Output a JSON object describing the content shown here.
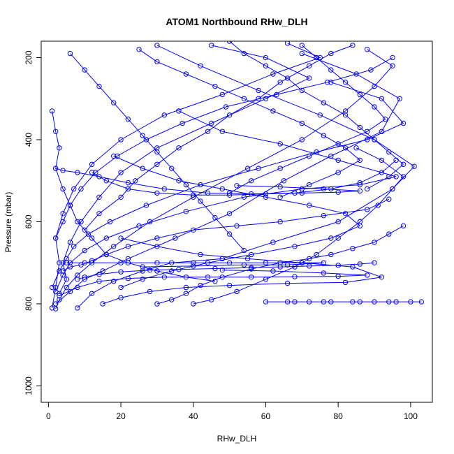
{
  "chart_data": {
    "type": "scatter",
    "title": "ATOM1 Northbound RHw_DLH",
    "xlabel": "RHw_DLH",
    "ylabel": "Pressure (mbar)",
    "xlim": [
      -2,
      106
    ],
    "ylim": [
      1040,
      160
    ],
    "y_inverted": true,
    "x_ticks": [
      0,
      20,
      40,
      60,
      80,
      100
    ],
    "y_ticks": [
      200,
      400,
      600,
      800,
      1000
    ],
    "grid": false,
    "series_color": "#0000ff",
    "marker": "open-circle",
    "profiles": [
      [
        [
          2,
          812
        ],
        [
          3,
          790
        ],
        [
          5,
          760
        ],
        [
          8,
          730
        ],
        [
          12,
          700
        ],
        [
          18,
          660
        ],
        [
          28,
          600
        ],
        [
          40,
          540
        ],
        [
          55,
          470
        ],
        [
          70,
          400
        ],
        [
          82,
          330
        ],
        [
          90,
          270
        ],
        [
          95,
          220
        ],
        [
          88,
          180
        ]
      ],
      [
        [
          2,
          800
        ],
        [
          6,
          770
        ],
        [
          10,
          740
        ],
        [
          15,
          720
        ],
        [
          22,
          690
        ],
        [
          35,
          640
        ],
        [
          50,
          580
        ],
        [
          65,
          500
        ],
        [
          78,
          440
        ],
        [
          92,
          380
        ],
        [
          97,
          300
        ],
        [
          85,
          240
        ],
        [
          70,
          190
        ]
      ],
      [
        [
          3,
          775
        ],
        [
          5,
          740
        ],
        [
          4,
          700
        ],
        [
          6,
          650
        ],
        [
          9,
          600
        ],
        [
          14,
          540
        ],
        [
          20,
          480
        ],
        [
          30,
          420
        ],
        [
          45,
          360
        ],
        [
          60,
          300
        ],
        [
          72,
          250
        ],
        [
          60,
          200
        ],
        [
          45,
          170
        ]
      ],
      [
        [
          1,
          810
        ],
        [
          2,
          760
        ],
        [
          3,
          700
        ],
        [
          2,
          640
        ],
        [
          4,
          580
        ],
        [
          7,
          520
        ],
        [
          12,
          460
        ],
        [
          20,
          400
        ],
        [
          32,
          340
        ],
        [
          48,
          290
        ],
        [
          62,
          240
        ],
        [
          75,
          200
        ],
        [
          66,
          165
        ]
      ],
      [
        [
          8,
          810
        ],
        [
          12,
          775
        ],
        [
          18,
          745
        ],
        [
          26,
          720
        ],
        [
          34,
          700
        ],
        [
          48,
          690
        ],
        [
          62,
          650
        ],
        [
          80,
          600
        ],
        [
          95,
          520
        ],
        [
          101,
          465
        ],
        [
          90,
          400
        ],
        [
          75,
          340
        ],
        [
          58,
          280
        ],
        [
          42,
          220
        ],
        [
          30,
          170
        ]
      ],
      [
        [
          2,
          770
        ],
        [
          4,
          730
        ],
        [
          6,
          700
        ],
        [
          10,
          670
        ],
        [
          16,
          640
        ],
        [
          25,
          610
        ],
        [
          38,
          575
        ],
        [
          54,
          540
        ],
        [
          70,
          520
        ],
        [
          86,
          510
        ],
        [
          96,
          490
        ],
        [
          80,
          450
        ],
        [
          64,
          410
        ],
        [
          48,
          380
        ],
        [
          36,
          330
        ]
      ],
      [
        [
          1,
          760
        ],
        [
          3,
          720
        ],
        [
          5,
          690
        ],
        [
          7,
          660
        ],
        [
          11,
          630
        ],
        [
          17,
          600
        ],
        [
          27,
          560
        ],
        [
          42,
          510
        ],
        [
          58,
          470
        ],
        [
          74,
          430
        ],
        [
          88,
          400
        ],
        [
          98,
          360
        ],
        [
          92,
          300
        ],
        [
          78,
          260
        ]
      ],
      [
        [
          15,
          800
        ],
        [
          20,
          785
        ],
        [
          28,
          770
        ],
        [
          38,
          760
        ],
        [
          50,
          755
        ],
        [
          66,
          750
        ],
        [
          82,
          748
        ],
        [
          92,
          735
        ],
        [
          84,
          710
        ],
        [
          70,
          700
        ],
        [
          55,
          690
        ],
        [
          42,
          680
        ],
        [
          30,
          660
        ],
        [
          20,
          640
        ]
      ],
      [
        [
          60,
          795
        ],
        [
          66,
          795
        ],
        [
          72,
          795
        ],
        [
          78,
          795
        ],
        [
          84,
          795
        ],
        [
          90,
          795
        ],
        [
          96,
          795
        ],
        [
          100,
          795
        ],
        [
          103,
          795
        ],
        [
          94,
          795
        ],
        [
          86,
          795
        ],
        [
          76,
          795
        ],
        [
          68,
          795
        ]
      ],
      [
        [
          3,
          780
        ],
        [
          8,
          760
        ],
        [
          14,
          745
        ],
        [
          22,
          738
        ],
        [
          32,
          735
        ],
        [
          44,
          735
        ],
        [
          56,
          735
        ],
        [
          68,
          734
        ],
        [
          80,
          733
        ],
        [
          88,
          730
        ],
        [
          76,
          725
        ],
        [
          62,
          720
        ],
        [
          48,
          718
        ]
      ],
      [
        [
          5,
          700
        ],
        [
          10,
          700
        ],
        [
          20,
          700
        ],
        [
          30,
          700
        ],
        [
          40,
          700
        ],
        [
          50,
          700
        ],
        [
          60,
          700
        ],
        [
          70,
          700
        ],
        [
          76,
          700
        ],
        [
          66,
          705
        ],
        [
          54,
          705
        ],
        [
          40,
          708
        ],
        [
          26,
          710
        ]
      ],
      [
        [
          2,
          640
        ],
        [
          4,
          600
        ],
        [
          6,
          560
        ],
        [
          9,
          520
        ],
        [
          13,
          480
        ],
        [
          19,
          440
        ],
        [
          27,
          400
        ],
        [
          37,
          360
        ],
        [
          49,
          320
        ],
        [
          63,
          290
        ],
        [
          77,
          260
        ],
        [
          89,
          230
        ],
        [
          95,
          200
        ]
      ],
      [
        [
          40,
          800
        ],
        [
          45,
          790
        ],
        [
          52,
          770
        ],
        [
          60,
          740
        ],
        [
          68,
          710
        ],
        [
          74,
          680
        ],
        [
          80,
          640
        ],
        [
          86,
          600
        ],
        [
          91,
          560
        ],
        [
          95,
          520
        ],
        [
          98,
          490
        ],
        [
          92,
          450
        ],
        [
          85,
          420
        ]
      ],
      [
        [
          10,
          620
        ],
        [
          14,
          580
        ],
        [
          20,
          540
        ],
        [
          24,
          500
        ],
        [
          30,
          460
        ],
        [
          36,
          420
        ],
        [
          44,
          380
        ],
        [
          50,
          340
        ],
        [
          58,
          300
        ],
        [
          64,
          260
        ],
        [
          72,
          220
        ],
        [
          78,
          190
        ],
        [
          84,
          170
        ]
      ],
      [
        [
          4,
          720
        ],
        [
          6,
          710
        ],
        [
          9,
          705
        ],
        [
          12,
          695
        ],
        [
          16,
          680
        ],
        [
          22,
          660
        ],
        [
          30,
          640
        ],
        [
          40,
          620
        ],
        [
          52,
          610
        ],
        [
          64,
          600
        ],
        [
          76,
          585
        ],
        [
          88,
          570
        ],
        [
          94,
          545
        ]
      ],
      [
        [
          20,
          760
        ],
        [
          26,
          740
        ],
        [
          34,
          720
        ],
        [
          44,
          700
        ],
        [
          56,
          680
        ],
        [
          68,
          660
        ],
        [
          78,
          640
        ],
        [
          86,
          610
        ],
        [
          82,
          580
        ],
        [
          72,
          560
        ],
        [
          60,
          540
        ],
        [
          48,
          520
        ],
        [
          36,
          500
        ],
        [
          26,
          470
        ],
        [
          18,
          440
        ]
      ],
      [
        [
          1,
          330
        ],
        [
          2,
          380
        ],
        [
          3,
          420
        ],
        [
          2,
          470
        ],
        [
          4,
          520
        ],
        [
          6,
          560
        ],
        [
          8,
          600
        ],
        [
          12,
          640
        ],
        [
          16,
          680
        ],
        [
          22,
          700
        ],
        [
          30,
          720
        ],
        [
          38,
          735
        ],
        [
          46,
          745
        ]
      ],
      [
        [
          50,
          160
        ],
        [
          54,
          190
        ],
        [
          60,
          220
        ],
        [
          66,
          250
        ],
        [
          70,
          280
        ],
        [
          76,
          310
        ],
        [
          82,
          340
        ],
        [
          86,
          370
        ],
        [
          90,
          400
        ],
        [
          94,
          430
        ],
        [
          98,
          460
        ],
        [
          94,
          490
        ],
        [
          88,
          520
        ]
      ],
      [
        [
          6,
          190
        ],
        [
          10,
          230
        ],
        [
          14,
          270
        ],
        [
          18,
          310
        ],
        [
          22,
          350
        ],
        [
          26,
          390
        ],
        [
          30,
          430
        ],
        [
          34,
          470
        ],
        [
          38,
          510
        ],
        [
          42,
          550
        ],
        [
          46,
          590
        ],
        [
          50,
          630
        ],
        [
          54,
          670
        ]
      ],
      [
        [
          25,
          180
        ],
        [
          30,
          210
        ],
        [
          38,
          240
        ],
        [
          46,
          270
        ],
        [
          54,
          300
        ],
        [
          62,
          330
        ],
        [
          70,
          360
        ],
        [
          76,
          390
        ],
        [
          82,
          420
        ],
        [
          86,
          450
        ],
        [
          80,
          480
        ],
        [
          72,
          510
        ],
        [
          64,
          540
        ]
      ],
      [
        [
          12,
          480
        ],
        [
          16,
          500
        ],
        [
          22,
          520
        ],
        [
          30,
          530
        ],
        [
          40,
          535
        ],
        [
          50,
          535
        ],
        [
          60,
          532
        ],
        [
          70,
          530
        ],
        [
          80,
          528
        ],
        [
          86,
          525
        ],
        [
          76,
          520
        ],
        [
          64,
          515
        ],
        [
          52,
          512
        ]
      ],
      [
        [
          2,
          470
        ],
        [
          4,
          475
        ],
        [
          8,
          480
        ],
        [
          14,
          490
        ],
        [
          22,
          505
        ],
        [
          32,
          520
        ],
        [
          44,
          530
        ],
        [
          56,
          532
        ],
        [
          68,
          530
        ],
        [
          78,
          520
        ],
        [
          86,
          505
        ],
        [
          92,
          480
        ],
        [
          96,
          450
        ]
      ],
      [
        [
          30,
          800
        ],
        [
          34,
          790
        ],
        [
          38,
          775
        ],
        [
          42,
          755
        ],
        [
          48,
          735
        ],
        [
          56,
          715
        ],
        [
          64,
          700
        ],
        [
          72,
          690
        ],
        [
          78,
          680
        ],
        [
          84,
          665
        ],
        [
          90,
          650
        ],
        [
          94,
          630
        ],
        [
          98,
          610
        ]
      ],
      [
        [
          8,
          740
        ],
        [
          10,
          735
        ],
        [
          14,
          728
        ],
        [
          20,
          722
        ],
        [
          28,
          718
        ],
        [
          36,
          716
        ],
        [
          46,
          714
        ],
        [
          56,
          712
        ],
        [
          64,
          710
        ],
        [
          72,
          708
        ],
        [
          80,
          706
        ],
        [
          86,
          703
        ],
        [
          90,
          700
        ]
      ],
      [
        [
          70,
          170
        ],
        [
          74,
          200
        ],
        [
          78,
          230
        ],
        [
          82,
          260
        ],
        [
          86,
          290
        ],
        [
          90,
          320
        ],
        [
          93,
          350
        ],
        [
          88,
          380
        ],
        [
          80,
          410
        ],
        [
          72,
          440
        ],
        [
          64,
          470
        ],
        [
          56,
          500
        ],
        [
          50,
          530
        ]
      ]
    ]
  }
}
